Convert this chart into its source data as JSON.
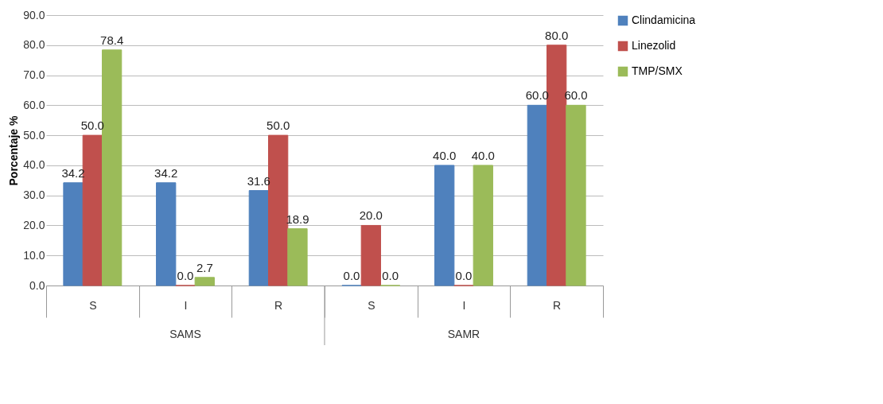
{
  "chart_data": {
    "type": "bar",
    "ylabel": "Porcentaje %",
    "categories": [
      "S",
      "I",
      "R",
      "S",
      "I",
      "R"
    ],
    "annotations": [
      "SAMS",
      "SAMR"
    ],
    "series": [
      {
        "name": "Clindamicina",
        "color": "#4f81bd",
        "values": [
          34.2,
          34.2,
          31.6,
          0.0,
          40.0,
          60.0
        ],
        "value_labels": [
          "34.2",
          "34.2",
          "31.6",
          "0.0",
          "40.0",
          "60.0"
        ]
      },
      {
        "name": "Linezolid",
        "color": "#c0504d",
        "values": [
          50.0,
          0.0,
          50.0,
          20.0,
          0.0,
          80.0
        ],
        "value_labels": [
          "50.0",
          "0.0",
          "50.0",
          "20.0",
          "0.0",
          "80.0"
        ]
      },
      {
        "name": "TMP/SMX",
        "color": "#9bbb59",
        "values": [
          78.4,
          2.7,
          18.9,
          0.0,
          40.0,
          60.0
        ],
        "value_labels": [
          "78.4",
          "2.7",
          "18.9",
          "0.0",
          "40.0",
          "60.0"
        ]
      }
    ],
    "ylim": [
      0,
      90
    ],
    "yticks": [
      {
        "value": 0,
        "label": "0.0"
      },
      {
        "value": 10,
        "label": "10.0"
      },
      {
        "value": 20,
        "label": "20.0"
      },
      {
        "value": 30,
        "label": "30.0"
      },
      {
        "value": 40,
        "label": "40.0"
      },
      {
        "value": 50,
        "label": "50.0"
      },
      {
        "value": 60,
        "label": "60.0"
      },
      {
        "value": 70,
        "label": "70.0"
      },
      {
        "value": 80,
        "label": "80.0"
      },
      {
        "value": 90,
        "label": "90.0"
      }
    ],
    "grid": "y",
    "legend": "right"
  }
}
